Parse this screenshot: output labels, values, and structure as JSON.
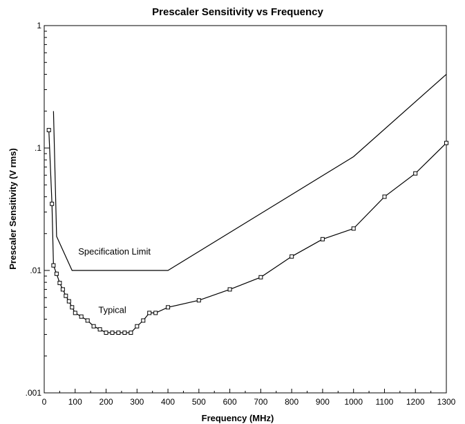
{
  "chart_data": {
    "type": "line",
    "title": "Prescaler Sensitivity vs Frequency",
    "xlabel": "Frequency (MHz)",
    "ylabel": "Prescaler Sensitivity (V rms)",
    "xlim": [
      0,
      1300
    ],
    "ylim": [
      0.001,
      1
    ],
    "yscale": "log",
    "grid": false,
    "x_ticks": [
      0,
      100,
      200,
      300,
      400,
      500,
      600,
      700,
      800,
      900,
      1000,
      1100,
      1200,
      1300
    ],
    "x_tick_labels": [
      "0",
      "100",
      "200",
      "300",
      "400",
      "500",
      "600",
      "700",
      "800",
      "900",
      "1000",
      "1100",
      "1200",
      "1300"
    ],
    "y_ticks": [
      0.001,
      0.01,
      0.1,
      1
    ],
    "y_tick_labels": [
      ".001",
      ".01",
      ".1",
      "1"
    ],
    "series": [
      {
        "name": "Specification Limit",
        "markers": false,
        "color": "#000000",
        "x": [
          30,
          40,
          90,
          400,
          1000,
          1300
        ],
        "y": [
          0.2,
          0.019,
          0.01,
          0.01,
          0.085,
          0.4
        ]
      },
      {
        "name": "Typical",
        "markers": true,
        "marker": "square",
        "color": "#000000",
        "x": [
          15,
          25,
          30,
          40,
          50,
          60,
          70,
          80,
          90,
          100,
          120,
          140,
          160,
          180,
          200,
          220,
          240,
          260,
          280,
          300,
          320,
          340,
          360,
          400,
          500,
          600,
          700,
          800,
          900,
          1000,
          1100,
          1200,
          1300
        ],
        "y": [
          0.14,
          0.035,
          0.011,
          0.0094,
          0.0079,
          0.007,
          0.0062,
          0.0056,
          0.005,
          0.0045,
          0.0042,
          0.0039,
          0.0035,
          0.0033,
          0.0031,
          0.0031,
          0.0031,
          0.0031,
          0.0031,
          0.0035,
          0.0039,
          0.0045,
          0.0045,
          0.005,
          0.0057,
          0.007,
          0.0088,
          0.013,
          0.018,
          0.022,
          0.04,
          0.062,
          0.11
        ]
      }
    ],
    "annotations": [
      {
        "text": "Specification Limit",
        "x": 110,
        "y": 0.0135
      },
      {
        "text": "Typical",
        "x": 175,
        "y": 0.0045
      }
    ]
  }
}
